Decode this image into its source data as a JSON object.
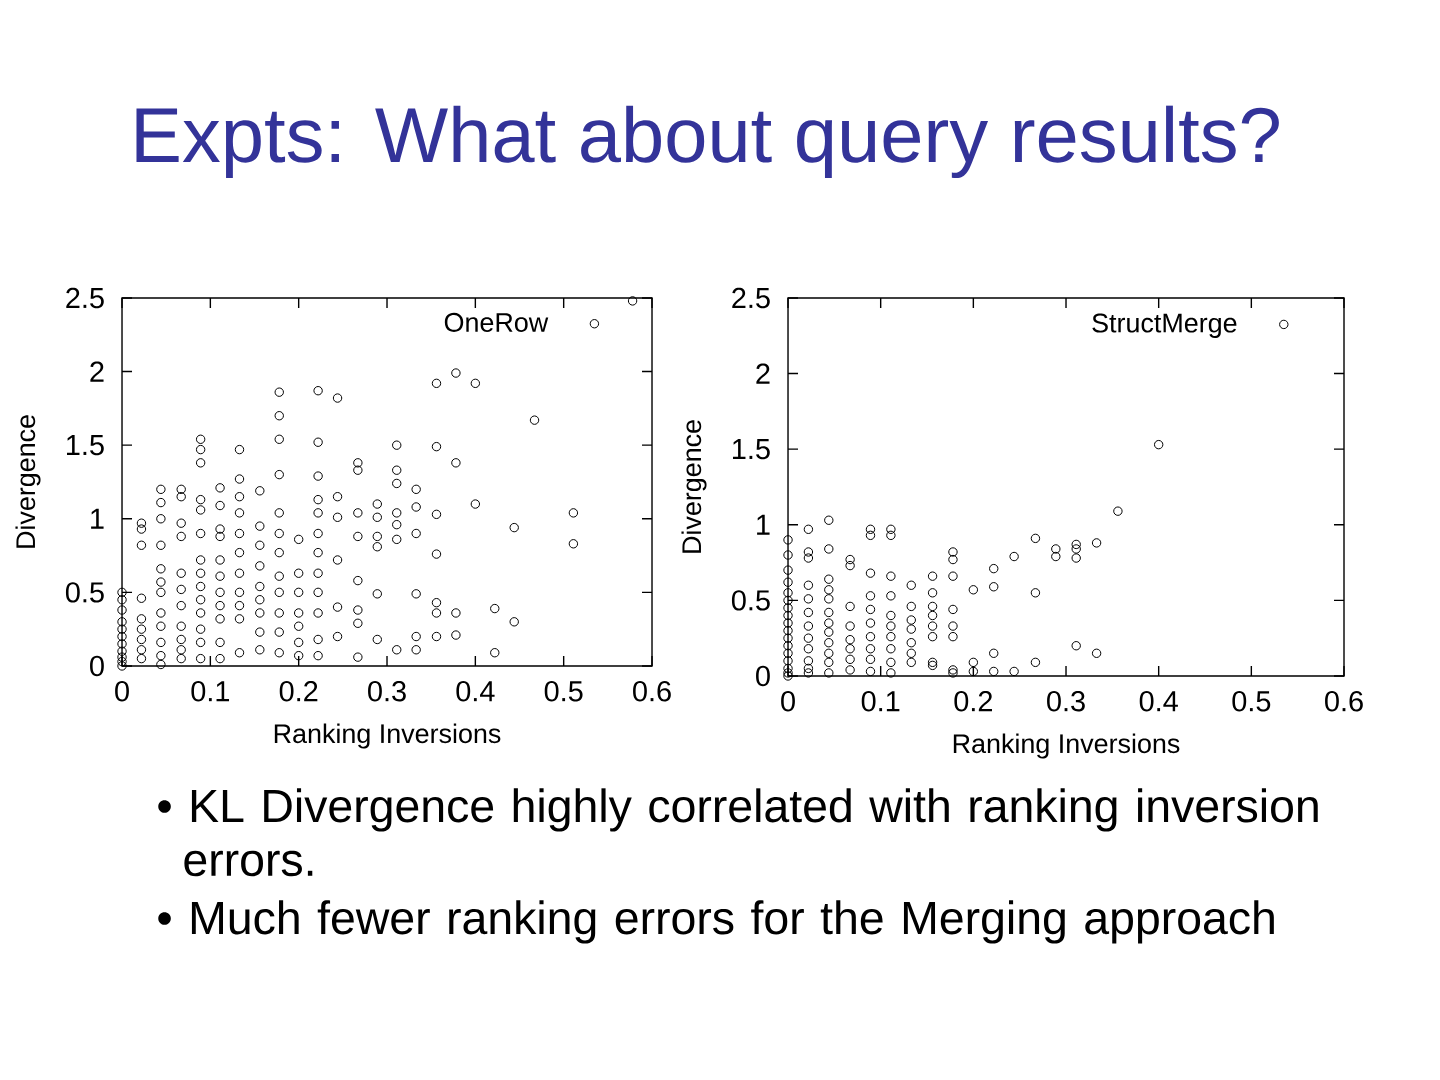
{
  "chart_data": [
    {
      "type": "other",
      "title": "Expts: What about query results?"
    },
    {
      "type": "scatter",
      "xlabel": "Ranking Inversions",
      "ylabel": "Divergence",
      "xlim": [
        0,
        0.6
      ],
      "ylim": [
        0,
        2.5
      ],
      "xticks": [
        0,
        0.1,
        0.2,
        0.3,
        0.4,
        0.5,
        0.6
      ],
      "yticks": [
        0,
        0.5,
        1,
        1.5,
        2,
        2.5
      ],
      "legend": "top right",
      "marker": "circle",
      "series": [
        {
          "name": "OneRow",
          "color": "#000000",
          "x": [
            0,
            0,
            0,
            0,
            0,
            0,
            0,
            0,
            0,
            0,
            0,
            0.022,
            0.022,
            0.022,
            0.022,
            0.022,
            0.022,
            0.022,
            0.022,
            0.022,
            0.044,
            0.044,
            0.044,
            0.044,
            0.044,
            0.044,
            0.044,
            0.044,
            0.044,
            0.044,
            0.044,
            0.044,
            0.067,
            0.067,
            0.067,
            0.067,
            0.067,
            0.067,
            0.067,
            0.067,
            0.067,
            0.067,
            0.067,
            0.089,
            0.089,
            0.089,
            0.089,
            0.089,
            0.089,
            0.089,
            0.089,
            0.089,
            0.089,
            0.089,
            0.089,
            0.089,
            0.089,
            0.111,
            0.111,
            0.111,
            0.111,
            0.111,
            0.111,
            0.111,
            0.111,
            0.111,
            0.111,
            0.111,
            0.133,
            0.133,
            0.133,
            0.133,
            0.133,
            0.133,
            0.133,
            0.133,
            0.133,
            0.133,
            0.133,
            0.156,
            0.156,
            0.156,
            0.156,
            0.156,
            0.156,
            0.156,
            0.156,
            0.156,
            0.178,
            0.178,
            0.178,
            0.178,
            0.178,
            0.178,
            0.178,
            0.178,
            0.178,
            0.178,
            0.178,
            0.178,
            0.2,
            0.2,
            0.2,
            0.2,
            0.2,
            0.2,
            0.2,
            0.222,
            0.222,
            0.222,
            0.222,
            0.222,
            0.222,
            0.222,
            0.222,
            0.222,
            0.222,
            0.222,
            0.222,
            0.244,
            0.244,
            0.244,
            0.244,
            0.244,
            0.244,
            0.267,
            0.267,
            0.267,
            0.267,
            0.267,
            0.267,
            0.267,
            0.267,
            0.289,
            0.289,
            0.289,
            0.289,
            0.289,
            0.289,
            0.311,
            0.311,
            0.311,
            0.311,
            0.311,
            0.311,
            0.311,
            0.333,
            0.333,
            0.333,
            0.333,
            0.333,
            0.333,
            0.356,
            0.356,
            0.356,
            0.356,
            0.356,
            0.356,
            0.356,
            0.378,
            0.378,
            0.378,
            0.378,
            0.4,
            0.4,
            0.422,
            0.422,
            0.444,
            0.444,
            0.467,
            0.511,
            0.511,
            0.578
          ],
          "values": [
            0.5,
            0.45,
            0.38,
            0.3,
            0.25,
            0.2,
            0.15,
            0.1,
            0.06,
            0.03,
            0,
            0.97,
            0.93,
            0.82,
            0.46,
            0.32,
            0.25,
            0.18,
            0.11,
            0.05,
            1.2,
            1.11,
            1.0,
            0.82,
            0.66,
            0.57,
            0.5,
            0.36,
            0.27,
            0.16,
            0.07,
            0.01,
            1.2,
            1.15,
            0.97,
            0.88,
            0.63,
            0.52,
            0.41,
            0.27,
            0.18,
            0.11,
            0.05,
            1.54,
            1.47,
            1.38,
            1.13,
            1.06,
            0.9,
            0.72,
            0.63,
            0.54,
            0.45,
            0.36,
            0.25,
            0.16,
            0.05,
            1.21,
            1.09,
            0.93,
            0.88,
            0.72,
            0.61,
            0.5,
            0.41,
            0.32,
            0.16,
            0.05,
            1.47,
            1.27,
            1.15,
            1.04,
            0.9,
            0.77,
            0.63,
            0.5,
            0.41,
            0.32,
            0.09,
            1.19,
            0.95,
            0.82,
            0.68,
            0.54,
            0.45,
            0.36,
            0.23,
            0.11,
            1.86,
            1.7,
            1.54,
            1.3,
            1.04,
            0.9,
            0.77,
            0.61,
            0.5,
            0.36,
            0.23,
            0.09,
            0.86,
            0.63,
            0.5,
            0.36,
            0.27,
            0.16,
            0.07,
            1.87,
            1.52,
            1.29,
            1.13,
            1.04,
            0.9,
            0.77,
            0.63,
            0.5,
            0.36,
            0.18,
            0.07,
            1.82,
            1.15,
            1.01,
            0.72,
            0.4,
            0.2,
            1.38,
            1.33,
            1.04,
            0.88,
            0.58,
            0.38,
            0.29,
            0.06,
            1.1,
            1.01,
            0.88,
            0.81,
            0.49,
            0.18,
            1.5,
            1.33,
            1.24,
            1.04,
            0.96,
            0.86,
            0.11,
            1.2,
            1.08,
            0.9,
            0.49,
            0.2,
            0.11,
            1.92,
            1.49,
            1.03,
            0.76,
            0.43,
            0.36,
            0.2,
            1.99,
            1.38,
            0.36,
            0.21,
            1.92,
            1.1,
            0.39,
            0.09,
            0.94,
            0.3,
            1.67,
            1.04,
            0.83,
            2.48
          ]
        }
      ]
    },
    {
      "type": "scatter",
      "xlabel": "Ranking Inversions",
      "ylabel": "Divergence",
      "xlim": [
        0,
        0.6
      ],
      "ylim": [
        0,
        2.5
      ],
      "xticks": [
        0,
        0.1,
        0.2,
        0.3,
        0.4,
        0.5,
        0.6
      ],
      "yticks": [
        0,
        0.5,
        1,
        1.5,
        2,
        2.5
      ],
      "legend": "top right",
      "marker": "circle",
      "series": [
        {
          "name": "StructMerge",
          "color": "#000000",
          "x": [
            0,
            0,
            0,
            0,
            0,
            0,
            0,
            0,
            0,
            0,
            0,
            0,
            0,
            0,
            0,
            0,
            0,
            0.022,
            0.022,
            0.022,
            0.022,
            0.022,
            0.022,
            0.022,
            0.022,
            0.022,
            0.022,
            0.022,
            0.022,
            0.044,
            0.044,
            0.044,
            0.044,
            0.044,
            0.044,
            0.044,
            0.044,
            0.044,
            0.044,
            0.044,
            0.044,
            0.067,
            0.067,
            0.067,
            0.067,
            0.067,
            0.067,
            0.067,
            0.067,
            0.089,
            0.089,
            0.089,
            0.089,
            0.089,
            0.089,
            0.089,
            0.089,
            0.089,
            0.089,
            0.111,
            0.111,
            0.111,
            0.111,
            0.111,
            0.111,
            0.111,
            0.111,
            0.111,
            0.111,
            0.133,
            0.133,
            0.133,
            0.133,
            0.133,
            0.133,
            0.133,
            0.156,
            0.156,
            0.156,
            0.156,
            0.156,
            0.156,
            0.156,
            0.156,
            0.178,
            0.178,
            0.178,
            0.178,
            0.178,
            0.178,
            0.178,
            0.178,
            0.2,
            0.2,
            0.2,
            0.222,
            0.222,
            0.222,
            0.222,
            0.244,
            0.244,
            0.267,
            0.267,
            0.267,
            0.289,
            0.289,
            0.311,
            0.311,
            0.311,
            0.311,
            0.333,
            0.333,
            0.356,
            0.4
          ],
          "values": [
            0.9,
            0.8,
            0.7,
            0.62,
            0.55,
            0.5,
            0.45,
            0.4,
            0.35,
            0.3,
            0.25,
            0.2,
            0.15,
            0.1,
            0.05,
            0.02,
            0,
            0.97,
            0.82,
            0.78,
            0.6,
            0.51,
            0.42,
            0.33,
            0.25,
            0.18,
            0.1,
            0.05,
            0.02,
            1.03,
            0.84,
            0.64,
            0.57,
            0.51,
            0.42,
            0.35,
            0.29,
            0.22,
            0.15,
            0.09,
            0.02,
            0.77,
            0.73,
            0.46,
            0.33,
            0.24,
            0.18,
            0.11,
            0.04,
            0.97,
            0.93,
            0.68,
            0.53,
            0.44,
            0.35,
            0.26,
            0.18,
            0.11,
            0.03,
            0.97,
            0.93,
            0.66,
            0.53,
            0.4,
            0.33,
            0.26,
            0.18,
            0.09,
            0.02,
            0.6,
            0.46,
            0.37,
            0.31,
            0.22,
            0.15,
            0.09,
            0.66,
            0.55,
            0.46,
            0.4,
            0.33,
            0.26,
            0.09,
            0.07,
            0.82,
            0.77,
            0.66,
            0.44,
            0.33,
            0.26,
            0.04,
            0.02,
            0.57,
            0.09,
            0.03,
            0.71,
            0.59,
            0.15,
            0.03,
            0.79,
            0.03,
            0.91,
            0.55,
            0.09,
            0.84,
            0.79,
            0.87,
            0.84,
            0.78,
            0.2,
            0.88,
            0.15,
            1.09,
            1.53
          ]
        }
      ]
    },
    {
      "type": "other",
      "annotations": [
        "• KL Divergence highly correlated with ranking inversion errors.",
        "• Much fewer ranking errors for the Merging approach"
      ]
    }
  ]
}
